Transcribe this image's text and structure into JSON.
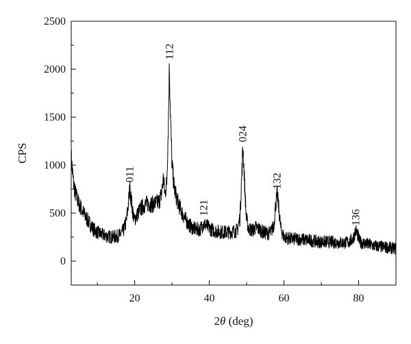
{
  "chart_data": {
    "type": "line",
    "xlabel_prefix": "2",
    "xlabel_symbol": "θ",
    "xlabel_suffix": " (deg)",
    "ylabel": "CPS",
    "xlim": [
      3,
      90
    ],
    "ylim": [
      -250,
      2500
    ],
    "x_ticks": [
      20,
      40,
      60,
      80
    ],
    "y_ticks": [
      0,
      500,
      1000,
      1500,
      2000,
      2500
    ],
    "grid": false,
    "line_color": "#000000",
    "series": [
      {
        "points": [
          [
            3,
            1080
          ],
          [
            3.5,
            850
          ],
          [
            4,
            720
          ],
          [
            5,
            600
          ],
          [
            6,
            520
          ],
          [
            7,
            450
          ],
          [
            8,
            390
          ],
          [
            9,
            330
          ],
          [
            10,
            300
          ],
          [
            11,
            280
          ],
          [
            12,
            265
          ],
          [
            13,
            255
          ],
          [
            14,
            250
          ],
          [
            15,
            255
          ],
          [
            16,
            270
          ],
          [
            17,
            320
          ],
          [
            17.8,
            420
          ],
          [
            18.3,
            600
          ],
          [
            18.7,
            760
          ],
          [
            19.2,
            600
          ],
          [
            19.8,
            430
          ],
          [
            20.5,
            470
          ],
          [
            21.5,
            540
          ],
          [
            22.5,
            580
          ],
          [
            23.5,
            600
          ],
          [
            24.5,
            590
          ],
          [
            25.5,
            600
          ],
          [
            26.5,
            620
          ],
          [
            27.2,
            700
          ],
          [
            27.7,
            870
          ],
          [
            28.1,
            700
          ],
          [
            28.6,
            820
          ],
          [
            29.0,
            1400
          ],
          [
            29.3,
            2050
          ],
          [
            29.6,
            1500
          ],
          [
            30.0,
            1000
          ],
          [
            30.6,
            760
          ],
          [
            31.5,
            620
          ],
          [
            32.5,
            520
          ],
          [
            33.5,
            440
          ],
          [
            34.5,
            380
          ],
          [
            35.5,
            345
          ],
          [
            36.5,
            330
          ],
          [
            37.5,
            330
          ],
          [
            38.5,
            390
          ],
          [
            39.5,
            360
          ],
          [
            40.5,
            330
          ],
          [
            42,
            310
          ],
          [
            44,
            300
          ],
          [
            46,
            305
          ],
          [
            47.5,
            320
          ],
          [
            48.2,
            450
          ],
          [
            48.7,
            900
          ],
          [
            49.0,
            1200
          ],
          [
            49.4,
            850
          ],
          [
            49.9,
            450
          ],
          [
            50.5,
            340
          ],
          [
            51.5,
            320
          ],
          [
            52.5,
            350
          ],
          [
            53.5,
            330
          ],
          [
            54.5,
            300
          ],
          [
            55.5,
            290
          ],
          [
            56.5,
            300
          ],
          [
            57.3,
            380
          ],
          [
            57.8,
            600
          ],
          [
            58.2,
            700
          ],
          [
            58.6,
            550
          ],
          [
            59.2,
            330
          ],
          [
            60,
            250
          ],
          [
            62,
            230
          ],
          [
            64,
            230
          ],
          [
            66,
            220
          ],
          [
            68,
            210
          ],
          [
            70,
            200
          ],
          [
            72,
            200
          ],
          [
            74,
            195
          ],
          [
            76,
            190
          ],
          [
            77.5,
            200
          ],
          [
            78.5,
            230
          ],
          [
            79.2,
            320
          ],
          [
            79.7,
            280
          ],
          [
            80.3,
            200
          ],
          [
            82,
            180
          ],
          [
            84,
            160
          ],
          [
            86,
            150
          ],
          [
            88,
            140
          ],
          [
            90,
            130
          ]
        ]
      }
    ],
    "annotations": [
      {
        "text": "011",
        "x": 18.7,
        "y": 820
      },
      {
        "text": "112",
        "x": 29.3,
        "y": 2100
      },
      {
        "text": "121",
        "x": 38.5,
        "y": 470
      },
      {
        "text": "024",
        "x": 49.0,
        "y": 1240
      },
      {
        "text": "132",
        "x": 58.2,
        "y": 750
      },
      {
        "text": "136",
        "x": 79.3,
        "y": 370
      }
    ]
  }
}
